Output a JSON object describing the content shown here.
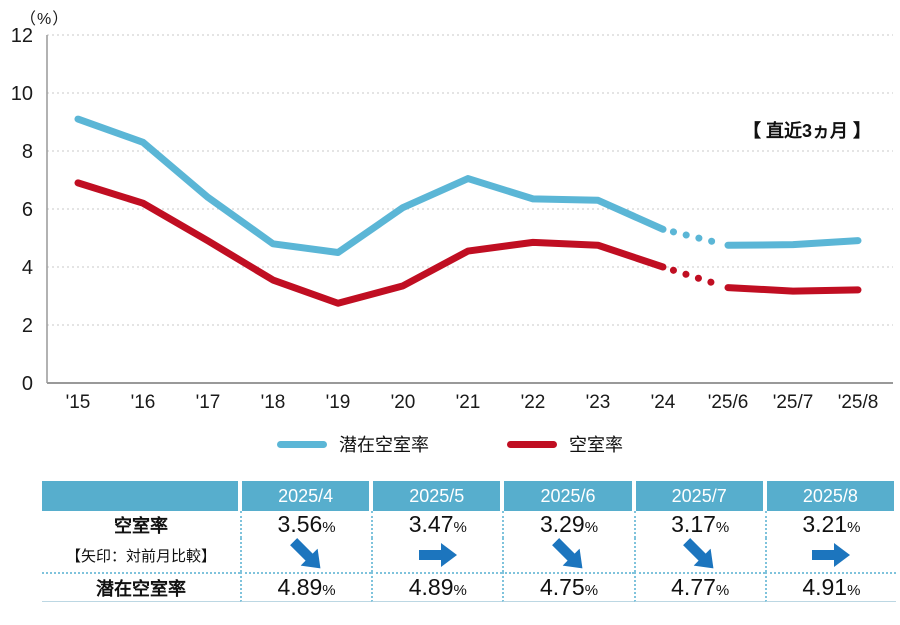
{
  "chart": {
    "unit_label": "（%）",
    "annotation": "【 直近3ヵ月 】"
  },
  "chart_data": {
    "type": "line",
    "categories": [
      "'15",
      "'16",
      "'17",
      "'18",
      "'19",
      "'20",
      "'21",
      "'22",
      "'23",
      "'24",
      "'25/6",
      "'25/7",
      "'25/8"
    ],
    "series": [
      {
        "name": "潜在空室率",
        "color": "#5bb6d6",
        "values": [
          9.1,
          8.3,
          6.4,
          4.8,
          4.5,
          6.05,
          7.05,
          6.35,
          6.3,
          5.3,
          4.75,
          4.77,
          4.91
        ],
        "dotted_segment": [
          9,
          10
        ]
      },
      {
        "name": "空室率",
        "color": "#c00e22",
        "values": [
          6.9,
          6.2,
          4.9,
          3.55,
          2.75,
          3.35,
          4.55,
          4.85,
          4.75,
          4.0,
          3.29,
          3.17,
          3.21
        ],
        "dotted_segment": [
          9,
          10
        ]
      }
    ],
    "title": "",
    "xlabel": "",
    "ylabel": "（%）",
    "ylim": [
      0,
      12
    ],
    "y_ticks": [
      0,
      2,
      4,
      6,
      8,
      10,
      12
    ],
    "grid": "horizontal-dotted",
    "legend_position": "bottom",
    "annotation": "【 直近3ヵ月 】"
  },
  "legend": {
    "items": [
      {
        "label": "潜在空室率",
        "color": "#5bb6d6"
      },
      {
        "label": "空室率",
        "color": "#c00e22"
      }
    ]
  },
  "table": {
    "columns": [
      "2025/4",
      "2025/5",
      "2025/6",
      "2025/7",
      "2025/8"
    ],
    "header_bg": "#57aecd",
    "rows": [
      {
        "label": "空室率",
        "values": [
          "3.56",
          "3.47",
          "3.29",
          "3.17",
          "3.21"
        ],
        "suffix": "%"
      },
      {
        "label": "【矢印：対前月比較】",
        "arrows": [
          "down",
          "right",
          "down",
          "down",
          "right"
        ]
      },
      {
        "label": "潜在空室率",
        "values": [
          "4.89",
          "4.89",
          "4.75",
          "4.77",
          "4.91"
        ],
        "suffix": "%"
      }
    ],
    "arrow_color": "#1c75be"
  },
  "colors": {
    "grid": "#c9c9c9",
    "axis": "#999999",
    "separator": "#7fc3dc",
    "text": "#1a1a1a"
  }
}
